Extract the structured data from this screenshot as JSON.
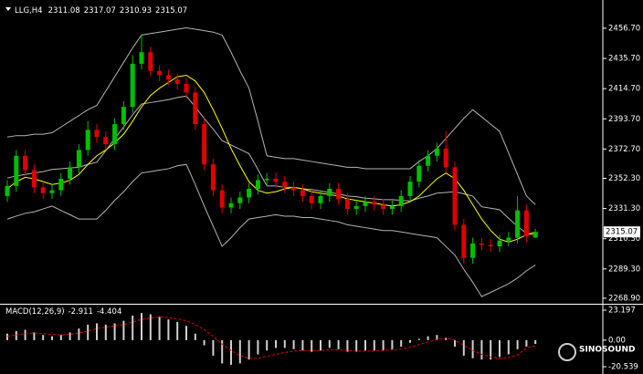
{
  "chart_data": [
    {
      "type": "candlestick",
      "title": "LLG,H4",
      "up_color": "#00c000",
      "down_color": "#e00000",
      "open": [
        2340,
        2347,
        2368,
        2358,
        2346,
        2342,
        2344,
        2352,
        2360,
        2372,
        2386,
        2381,
        2376,
        2390,
        2402,
        2432,
        2440,
        2427,
        2424,
        2421,
        2418,
        2412,
        2390,
        2362,
        2344,
        2332,
        2335,
        2339,
        2345,
        2351,
        2352,
        2350,
        2346,
        2344,
        2340,
        2335,
        2340,
        2345,
        2338,
        2331,
        2333,
        2336,
        2334,
        2331,
        2333,
        2340,
        2350,
        2361,
        2368,
        2373,
        2360,
        2320,
        2297,
        2307,
        2306,
        2305,
        2309,
        2311,
        2330,
        2311.08
      ],
      "high": [
        2351,
        2372,
        2372,
        2362,
        2350,
        2348,
        2356,
        2364,
        2376,
        2392,
        2390,
        2385,
        2394,
        2406,
        2438,
        2452,
        2444,
        2431,
        2428,
        2425,
        2422,
        2416,
        2394,
        2366,
        2348,
        2339,
        2343,
        2349,
        2355,
        2356,
        2356,
        2354,
        2350,
        2348,
        2344,
        2344,
        2349,
        2349,
        2342,
        2337,
        2340,
        2340,
        2338,
        2337,
        2344,
        2354,
        2365,
        2372,
        2377,
        2385,
        2364,
        2324,
        2311,
        2311,
        2310,
        2313,
        2315,
        2340,
        2334,
        2317.07
      ],
      "low": [
        2336,
        2343,
        2354,
        2342,
        2338,
        2338,
        2340,
        2348,
        2356,
        2368,
        2377,
        2372,
        2372,
        2386,
        2398,
        2428,
        2423,
        2420,
        2417,
        2414,
        2408,
        2386,
        2358,
        2340,
        2328,
        2328,
        2331,
        2335,
        2341,
        2347,
        2346,
        2342,
        2340,
        2336,
        2331,
        2331,
        2336,
        2334,
        2327,
        2327,
        2329,
        2330,
        2327,
        2327,
        2329,
        2336,
        2346,
        2357,
        2364,
        2356,
        2316,
        2293,
        2293,
        2302,
        2301,
        2301,
        2305,
        2307,
        2308,
        2310.93
      ],
      "close": [
        2347,
        2368,
        2358,
        2346,
        2342,
        2344,
        2352,
        2360,
        2372,
        2386,
        2381,
        2376,
        2390,
        2402,
        2432,
        2440,
        2427,
        2424,
        2421,
        2418,
        2412,
        2390,
        2362,
        2344,
        2332,
        2335,
        2339,
        2345,
        2351,
        2352,
        2350,
        2346,
        2344,
        2340,
        2335,
        2340,
        2345,
        2338,
        2331,
        2333,
        2336,
        2334,
        2331,
        2333,
        2340,
        2350,
        2361,
        2368,
        2373,
        2360,
        2320,
        2297,
        2307,
        2306,
        2305,
        2309,
        2311,
        2330,
        2312,
        2315.07
      ],
      "lines": [
        {
          "color": "#b4b4b4",
          "values": [
            2381,
            2382,
            2382,
            2383,
            2383,
            2384,
            2388,
            2392,
            2396,
            2400,
            2403,
            2413,
            2423,
            2433,
            2443,
            2452,
            2453,
            2454,
            2455,
            2456,
            2457,
            2456,
            2455,
            2454,
            2452,
            2440,
            2427,
            2415,
            2392,
            2368,
            2367,
            2366,
            2366,
            2365,
            2364,
            2363,
            2362,
            2361,
            2360,
            2360,
            2359,
            2359,
            2359,
            2359,
            2359,
            2359,
            2364,
            2368,
            2373,
            2380,
            2387,
            2394,
            2400,
            2395,
            2390,
            2385,
            2370,
            2355,
            2340,
            2334
          ]
        },
        {
          "color": "#b4b4b4",
          "values": [
            2352.5,
            2354,
            2355,
            2356,
            2357,
            2358.5,
            2359,
            2359.5,
            2360,
            2362,
            2363.5,
            2371.5,
            2380,
            2388,
            2396.5,
            2404,
            2405,
            2406,
            2407,
            2408.5,
            2409.5,
            2402,
            2394,
            2386.5,
            2378.5,
            2375.5,
            2372.5,
            2369.5,
            2358.5,
            2347,
            2347,
            2346,
            2346,
            2345,
            2344.5,
            2343.5,
            2342.5,
            2341.5,
            2340,
            2339.5,
            2338.5,
            2338,
            2337.5,
            2337.5,
            2337,
            2336.5,
            2338.5,
            2340,
            2342,
            2342.5,
            2343,
            2341.5,
            2340,
            2332.5,
            2331.5,
            2330.5,
            2324.5,
            2319,
            2314,
            2313
          ]
        },
        {
          "color": "#b4b4b4",
          "values": [
            2324,
            2326,
            2328,
            2329,
            2331,
            2333,
            2330,
            2327,
            2324,
            2324,
            2324,
            2330,
            2337,
            2343,
            2350,
            2356,
            2357,
            2358,
            2359,
            2361,
            2362,
            2348,
            2333,
            2319,
            2305,
            2311,
            2318,
            2324,
            2325,
            2326,
            2327,
            2326,
            2326,
            2325,
            2325,
            2324,
            2323,
            2322,
            2320,
            2319,
            2318,
            2317,
            2316,
            2316,
            2315,
            2314,
            2313,
            2312,
            2311,
            2305,
            2299,
            2289,
            2280,
            2270,
            2273,
            2276,
            2279,
            2283,
            2288,
            2292
          ]
        },
        {
          "color": "#ffff00",
          "values": [
            2345,
            2350,
            2353,
            2352,
            2350,
            2348,
            2349,
            2351,
            2355,
            2362,
            2368,
            2372,
            2377,
            2383,
            2392,
            2402,
            2410,
            2415,
            2419,
            2423,
            2424,
            2420,
            2412,
            2400,
            2387,
            2373,
            2361,
            2350,
            2344,
            2342,
            2343,
            2345,
            2346,
            2345,
            2343,
            2342,
            2341,
            2340,
            2338,
            2337,
            2336,
            2335,
            2334,
            2333,
            2334,
            2336,
            2340,
            2346,
            2352,
            2356,
            2352,
            2344,
            2334,
            2324,
            2316,
            2310,
            2308,
            2310,
            2313,
            2315
          ]
        }
      ],
      "current_price": 2315.07,
      "ylim": [
        2265.7,
        2473.8
      ],
      "yticks": [
        {
          "value": 2456.7,
          "label": "2456.70"
        },
        {
          "value": 2435.7,
          "label": "2435.70"
        },
        {
          "value": 2414.7,
          "label": "2414.70"
        },
        {
          "value": 2393.7,
          "label": "2393.70"
        },
        {
          "value": 2372.7,
          "label": "2372.70"
        },
        {
          "value": 2352.3,
          "label": "2352.30"
        },
        {
          "value": 2331.3,
          "label": "2331.30"
        },
        {
          "value": 2310.3,
          "label": "2310.30"
        },
        {
          "value": 2289.3,
          "label": "2289.30"
        },
        {
          "value": 2268.9,
          "label": "2268.90"
        }
      ]
    },
    {
      "type": "macd",
      "title": "MACD(12,26,9)",
      "histogram": {
        "color": "#d0d0d0",
        "values": [
          5,
          7,
          8,
          6,
          4,
          3,
          4,
          6,
          9,
          12,
          13,
          12,
          13,
          15,
          19,
          21,
          20,
          18,
          16,
          14,
          11,
          5,
          -4,
          -12,
          -18,
          -19,
          -18,
          -15,
          -11,
          -8,
          -6,
          -6,
          -7,
          -8,
          -9,
          -8,
          -6,
          -7,
          -9,
          -9,
          -8,
          -8,
          -8,
          -7,
          -5,
          -2,
          1,
          3,
          4,
          2,
          -5,
          -12,
          -14,
          -15,
          -15,
          -13,
          -11,
          -7,
          -5,
          -2.911
        ]
      },
      "signal": {
        "color": "#e00000",
        "values": [
          3,
          4,
          5,
          5.5,
          5,
          4.5,
          4,
          4.5,
          5.5,
          7,
          9,
          10,
          11,
          12,
          14,
          16,
          17,
          18,
          17.5,
          16.5,
          15,
          12,
          8,
          3,
          -3,
          -8,
          -12,
          -14,
          -14,
          -12.5,
          -11,
          -9.5,
          -8.5,
          -8,
          -8,
          -8,
          -7.5,
          -7.5,
          -8,
          -8.5,
          -8.5,
          -8.5,
          -8,
          -7.5,
          -7,
          -5.5,
          -3.5,
          -1.5,
          0.5,
          1.5,
          0,
          -4,
          -8,
          -11,
          -13,
          -14,
          -13.5,
          -11.5,
          -6,
          -4.404
        ]
      },
      "ylim": [
        -20.539,
        23.197
      ],
      "yticks": [
        23.197,
        {
          "value": 0,
          "label": "0.00"
        },
        -20.539
      ]
    },
    {
      "type": "logo",
      "text": "SINOSOUND"
    }
  ]
}
